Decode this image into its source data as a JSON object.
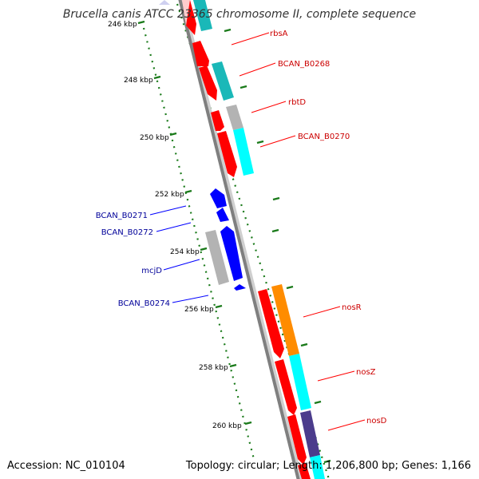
{
  "title": "Brucella canis ATCC 23365 chromosome II, complete sequence",
  "footer": {
    "accession": "Accession: NC_010104",
    "stats": "Topology: circular; Length: 1,206,800 bp; Genes: 1,166"
  },
  "colors": {
    "forward_label": "#cc0000",
    "reverse_label": "#000099",
    "tick": "#1a7a1a",
    "backbone": "#7f7f7f"
  },
  "scale": {
    "unit": "kbp",
    "ticks": [
      {
        "label": "246 kbp"
      },
      {
        "label": "248 kbp"
      },
      {
        "label": "250 kbp"
      },
      {
        "label": "252 kbp"
      },
      {
        "label": "254 kbp"
      },
      {
        "label": "256 kbp"
      },
      {
        "label": "258 kbp"
      },
      {
        "label": "260 kbp"
      }
    ]
  },
  "genes": {
    "forward": [
      {
        "label": "rbsA"
      },
      {
        "label": "BCAN_B0268"
      },
      {
        "label": "rbtD"
      },
      {
        "label": "BCAN_B0270"
      },
      {
        "label": "nosR"
      },
      {
        "label": "nosZ"
      },
      {
        "label": "nosD"
      }
    ],
    "reverse": [
      {
        "label": "BCAN_B0271"
      },
      {
        "label": "BCAN_B0272"
      },
      {
        "label": "mcjD"
      },
      {
        "label": "BCAN_B0274"
      }
    ]
  }
}
